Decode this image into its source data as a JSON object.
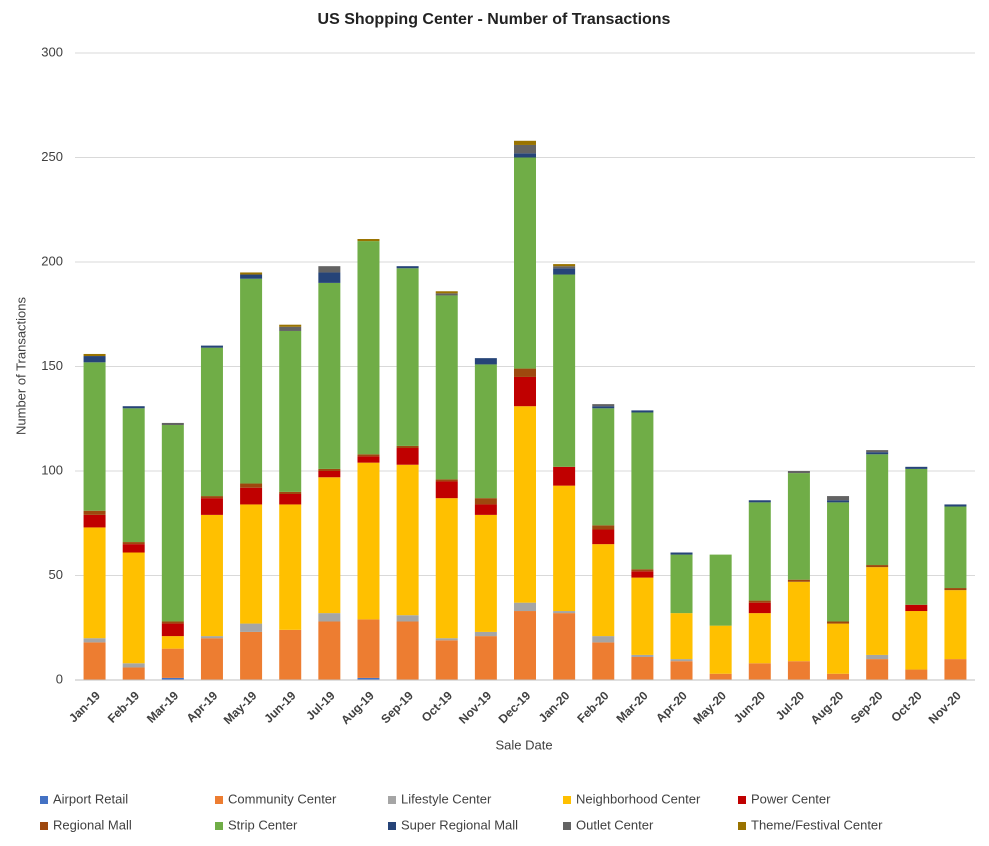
{
  "chart_data": {
    "type": "stacked_bar",
    "title": "US Shopping Center - Number of Transactions",
    "x_label": "Sale Date",
    "y_label": "Number of Transactions",
    "categories": [
      "Jan-19",
      "Feb-19",
      "Mar-19",
      "Apr-19",
      "May-19",
      "Jun-19",
      "Jul-19",
      "Aug-19",
      "Sep-19",
      "Oct-19",
      "Nov-19",
      "Dec-19",
      "Jan-20",
      "Feb-20",
      "Mar-20",
      "Apr-20",
      "May-20",
      "Jun-20",
      "Jul-20",
      "Aug-20",
      "Sep-20",
      "Oct-20",
      "Nov-20"
    ],
    "series": [
      {
        "name": "Airport Retail",
        "color": "#4472c4",
        "values": [
          0,
          0,
          1,
          0,
          0,
          0,
          0,
          1,
          0,
          0,
          0,
          0,
          0,
          0,
          0,
          0,
          0,
          0,
          0,
          0,
          0,
          0,
          0
        ]
      },
      {
        "name": "Community Center",
        "color": "#ed7d31",
        "values": [
          18,
          6,
          14,
          20,
          23,
          24,
          28,
          28,
          28,
          19,
          21,
          33,
          32,
          18,
          11,
          9,
          3,
          8,
          9,
          3,
          10,
          5,
          10
        ]
      },
      {
        "name": "Lifestyle Center",
        "color": "#a5a5a5",
        "values": [
          2,
          2,
          0,
          1,
          4,
          0,
          4,
          0,
          3,
          1,
          2,
          4,
          1,
          3,
          1,
          1,
          0,
          0,
          0,
          0,
          2,
          0,
          0
        ]
      },
      {
        "name": "Neighborhood Center",
        "color": "#ffc000",
        "values": [
          53,
          53,
          6,
          58,
          57,
          60,
          65,
          75,
          72,
          67,
          56,
          94,
          60,
          44,
          37,
          22,
          23,
          24,
          38,
          24,
          42,
          28,
          33
        ]
      },
      {
        "name": "Power Center",
        "color": "#c00000",
        "values": [
          6,
          4,
          6,
          8,
          8,
          5,
          3,
          3,
          8,
          8,
          5,
          14,
          9,
          7,
          3,
          0,
          0,
          5,
          0,
          0,
          0,
          3,
          0
        ]
      },
      {
        "name": "Regional Mall",
        "color": "#9e480e",
        "values": [
          2,
          1,
          1,
          1,
          2,
          1,
          1,
          1,
          1,
          1,
          3,
          4,
          0,
          2,
          1,
          0,
          0,
          1,
          1,
          1,
          1,
          0,
          1
        ]
      },
      {
        "name": "Strip Center",
        "color": "#70ad47",
        "values": [
          71,
          64,
          94,
          71,
          98,
          77,
          89,
          102,
          85,
          88,
          64,
          101,
          92,
          56,
          75,
          28,
          34,
          47,
          51,
          57,
          53,
          65,
          39
        ]
      },
      {
        "name": "Super Regional Mall",
        "color": "#264478",
        "values": [
          3,
          1,
          0,
          1,
          2,
          0,
          5,
          0,
          1,
          0,
          3,
          2,
          3,
          1,
          1,
          1,
          0,
          1,
          0,
          1,
          1,
          1,
          1
        ]
      },
      {
        "name": "Outlet Center",
        "color": "#636363",
        "values": [
          0,
          0,
          1,
          0,
          0,
          2,
          3,
          0,
          0,
          1,
          0,
          4,
          1,
          1,
          0,
          0,
          0,
          0,
          1,
          2,
          1,
          0,
          0
        ]
      },
      {
        "name": "Theme/Festival Center",
        "color": "#997300",
        "values": [
          1,
          0,
          0,
          0,
          1,
          1,
          0,
          1,
          0,
          1,
          0,
          2,
          1,
          0,
          0,
          0,
          0,
          0,
          0,
          0,
          0,
          0,
          0
        ]
      }
    ],
    "ylim": [
      0,
      300
    ],
    "yticks": [
      0,
      50,
      100,
      150,
      200,
      250,
      300
    ],
    "grid": true
  }
}
